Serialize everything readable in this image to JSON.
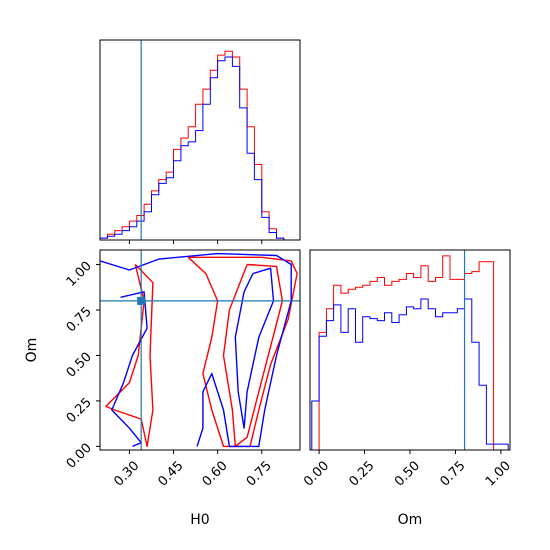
{
  "colors": {
    "series_a": "#ff0000",
    "series_b": "#0000ff",
    "truth": "#1f77b4",
    "frame": "#000000"
  },
  "chart_data": [
    {
      "type": "histogram",
      "panel": "H0 marginal",
      "xlim": [
        0.2,
        0.88
      ],
      "truth": 0.34,
      "bin_edges": [
        0.2,
        0.225,
        0.25,
        0.275,
        0.3,
        0.325,
        0.35,
        0.375,
        0.4,
        0.425,
        0.45,
        0.475,
        0.5,
        0.525,
        0.55,
        0.575,
        0.6,
        0.625,
        0.65,
        0.675,
        0.7,
        0.725,
        0.75,
        0.775,
        0.8,
        0.825,
        0.85
      ],
      "series": [
        {
          "color": "red",
          "values": [
            0.01,
            0.03,
            0.05,
            0.07,
            0.1,
            0.13,
            0.19,
            0.26,
            0.32,
            0.36,
            0.48,
            0.54,
            0.6,
            0.72,
            0.8,
            0.9,
            0.98,
            1.0,
            0.97,
            0.8,
            0.6,
            0.4,
            0.15,
            0.06,
            0.01,
            0.0
          ]
        },
        {
          "color": "blue",
          "values": [
            0.01,
            0.02,
            0.03,
            0.05,
            0.07,
            0.1,
            0.15,
            0.24,
            0.3,
            0.33,
            0.42,
            0.5,
            0.52,
            0.58,
            0.72,
            0.86,
            0.95,
            0.97,
            0.92,
            0.7,
            0.46,
            0.32,
            0.12,
            0.04,
            0.01,
            0.0
          ]
        }
      ]
    },
    {
      "type": "contour",
      "panel": "H0 vs Om joint",
      "xlabel": "H0",
      "ylabel": "Om",
      "xlim": [
        0.2,
        0.88
      ],
      "ylim": [
        -0.02,
        1.08
      ],
      "xticks": [
        "0.30",
        "0.45",
        "0.60",
        "0.75"
      ],
      "yticks": [
        "0.00",
        "0.25",
        "0.50",
        "0.75",
        "1.00"
      ],
      "truth": {
        "x": 0.34,
        "y": 0.8
      },
      "series": [
        {
          "color": "red",
          "level": 1,
          "points": [
            [
              0.5,
              1.04
            ],
            [
              0.75,
              1.04
            ],
            [
              0.85,
              1.02
            ],
            [
              0.87,
              0.95
            ],
            [
              0.84,
              0.7
            ],
            [
              0.78,
              0.45
            ],
            [
              0.74,
              0.2
            ],
            [
              0.71,
              0.0
            ],
            [
              0.62,
              0.0
            ],
            [
              0.58,
              0.2
            ],
            [
              0.55,
              0.4
            ],
            [
              0.58,
              0.6
            ],
            [
              0.6,
              0.8
            ],
            [
              0.56,
              0.95
            ],
            [
              0.5,
              1.04
            ]
          ]
        },
        {
          "color": "red",
          "level": 2,
          "points": [
            [
              0.7,
              1.0
            ],
            [
              0.8,
              0.99
            ],
            [
              0.82,
              0.8
            ],
            [
              0.78,
              0.55
            ],
            [
              0.74,
              0.3
            ],
            [
              0.7,
              0.05
            ],
            [
              0.66,
              0.0
            ],
            [
              0.65,
              0.2
            ],
            [
              0.62,
              0.5
            ],
            [
              0.64,
              0.75
            ],
            [
              0.7,
              1.0
            ]
          ]
        },
        {
          "color": "red",
          "level": 1,
          "points": [
            [
              0.32,
              1.0
            ],
            [
              0.35,
              0.8
            ],
            [
              0.33,
              0.5
            ],
            [
              0.3,
              0.35
            ],
            [
              0.22,
              0.22
            ],
            [
              0.25,
              0.2
            ],
            [
              0.34,
              0.15
            ],
            [
              0.36,
              0.0
            ],
            [
              0.38,
              0.2
            ],
            [
              0.37,
              0.5
            ],
            [
              0.38,
              0.9
            ],
            [
              0.32,
              1.0
            ]
          ]
        },
        {
          "color": "blue",
          "level": 1,
          "points": [
            [
              0.2,
              1.02
            ],
            [
              0.3,
              0.97
            ],
            [
              0.4,
              1.03
            ],
            [
              0.6,
              1.06
            ],
            [
              0.8,
              1.05
            ],
            [
              0.85,
              1.0
            ],
            [
              0.85,
              0.8
            ],
            [
              0.8,
              0.5
            ],
            [
              0.76,
              0.2
            ],
            [
              0.74,
              0.0
            ],
            [
              0.64,
              0.0
            ],
            [
              0.62,
              0.2
            ],
            [
              0.58,
              0.4
            ],
            [
              0.55,
              0.3
            ],
            [
              0.55,
              0.1
            ],
            [
              0.53,
              0.0
            ]
          ]
        },
        {
          "color": "blue",
          "level": 2,
          "points": [
            [
              0.27,
              0.82
            ],
            [
              0.35,
              0.85
            ],
            [
              0.36,
              0.65
            ],
            [
              0.31,
              0.5
            ],
            [
              0.28,
              0.35
            ],
            [
              0.24,
              0.2
            ],
            [
              0.3,
              0.1
            ],
            [
              0.34,
              0.02
            ],
            [
              0.31,
              0.0
            ]
          ]
        },
        {
          "color": "blue",
          "level": 2,
          "points": [
            [
              0.72,
              0.95
            ],
            [
              0.78,
              0.98
            ],
            [
              0.79,
              0.8
            ],
            [
              0.74,
              0.6
            ],
            [
              0.7,
              0.3
            ],
            [
              0.69,
              0.1
            ],
            [
              0.67,
              0.3
            ],
            [
              0.66,
              0.6
            ],
            [
              0.69,
              0.85
            ],
            [
              0.72,
              0.95
            ]
          ]
        }
      ]
    },
    {
      "type": "histogram",
      "panel": "Om marginal",
      "xlabel": "Om",
      "xlim": [
        -0.05,
        1.05
      ],
      "xticks": [
        "0.00",
        "0.25",
        "0.50",
        "0.75",
        "1.00"
      ],
      "truth": 0.8,
      "bin_edges": [
        -0.04,
        0.0,
        0.04,
        0.08,
        0.12,
        0.16,
        0.2,
        0.24,
        0.28,
        0.32,
        0.36,
        0.4,
        0.44,
        0.48,
        0.52,
        0.56,
        0.6,
        0.64,
        0.68,
        0.72,
        0.76,
        0.8,
        0.84,
        0.88,
        0.92,
        0.96,
        1.0,
        1.04
      ],
      "series": [
        {
          "color": "red",
          "values": [
            0.0,
            0.6,
            0.72,
            0.84,
            0.8,
            0.82,
            0.83,
            0.84,
            0.86,
            0.88,
            0.84,
            0.86,
            0.87,
            0.9,
            0.88,
            0.94,
            0.86,
            0.88,
            0.99,
            0.87,
            0.87,
            0.9,
            0.91,
            0.96,
            0.96,
            0.0,
            0.0
          ]
        },
        {
          "color": "blue",
          "values": [
            0.25,
            0.58,
            0.66,
            0.74,
            0.6,
            0.72,
            0.55,
            0.68,
            0.67,
            0.66,
            0.7,
            0.65,
            0.69,
            0.73,
            0.72,
            0.77,
            0.72,
            0.68,
            0.7,
            0.7,
            0.72,
            0.77,
            0.55,
            0.33,
            0.03,
            0.03,
            0.03
          ]
        }
      ]
    }
  ]
}
